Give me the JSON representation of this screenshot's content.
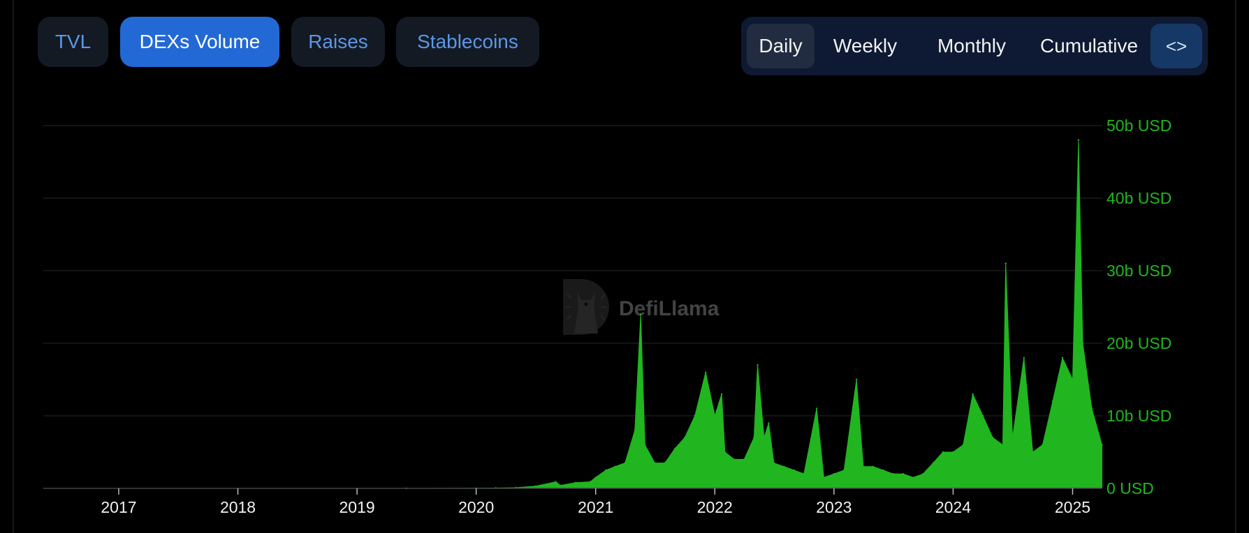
{
  "tabs": [
    {
      "label": "TVL"
    },
    {
      "label": "DEXs Volume"
    },
    {
      "label": "Raises"
    },
    {
      "label": "Stablecoins"
    }
  ],
  "active_tab": "DEXs Volume",
  "periods": [
    {
      "label": "Daily"
    },
    {
      "label": "Weekly"
    },
    {
      "label": "Monthly"
    },
    {
      "label": "Cumulative"
    }
  ],
  "active_period": "Daily",
  "embed_icon": "code-icon",
  "embed_label": "<>",
  "watermark": {
    "text": "DefiLlama",
    "icon": "llama-logo"
  },
  "colors": {
    "series": "#21b520",
    "axis_text": "#21b520",
    "accent": "#2269d6"
  },
  "chart_data": {
    "type": "area",
    "title": "",
    "xlabel": "",
    "ylabel": "",
    "x_range": [
      "2016-05-15",
      "2025-04-02"
    ],
    "x_ticks": [
      "2017",
      "2018",
      "2019",
      "2020",
      "2021",
      "2022",
      "2023",
      "2024",
      "2025"
    ],
    "y_ticks": [
      "0 USD",
      "10b USD",
      "20b USD",
      "30b USD",
      "40b USD",
      "50b USD"
    ],
    "ylim": [
      0,
      50
    ],
    "y_unit": "b USD",
    "grid": true,
    "y_axis_position": "right",
    "series": [
      {
        "points": [
          [
            "2019-06-01",
            0.0
          ],
          [
            "2020-01-01",
            0.02
          ],
          [
            "2020-03-01",
            0.05
          ],
          [
            "2020-05-01",
            0.1
          ],
          [
            "2020-07-01",
            0.3
          ],
          [
            "2020-09-01",
            0.9
          ],
          [
            "2020-09-15",
            0.4
          ],
          [
            "2020-11-01",
            0.8
          ],
          [
            "2020-12-15",
            0.9
          ],
          [
            "2021-01-01",
            1.5
          ],
          [
            "2021-02-01",
            2.5
          ],
          [
            "2021-03-01",
            3.0
          ],
          [
            "2021-04-01",
            3.5
          ],
          [
            "2021-05-01",
            8.0
          ],
          [
            "2021-05-19",
            24.0
          ],
          [
            "2021-06-01",
            6.0
          ],
          [
            "2021-07-01",
            3.5
          ],
          [
            "2021-08-01",
            3.5
          ],
          [
            "2021-09-01",
            5.5
          ],
          [
            "2021-10-01",
            7.0
          ],
          [
            "2021-11-01",
            10.0
          ],
          [
            "2021-12-04",
            16.0
          ],
          [
            "2022-01-01",
            10.0
          ],
          [
            "2022-01-22",
            13.0
          ],
          [
            "2022-02-01",
            5.0
          ],
          [
            "2022-03-01",
            4.0
          ],
          [
            "2022-04-01",
            4.0
          ],
          [
            "2022-05-01",
            7.0
          ],
          [
            "2022-05-12",
            17.0
          ],
          [
            "2022-06-01",
            7.0
          ],
          [
            "2022-06-15",
            9.0
          ],
          [
            "2022-07-01",
            3.5
          ],
          [
            "2022-08-01",
            3.0
          ],
          [
            "2022-09-01",
            2.5
          ],
          [
            "2022-10-01",
            2.0
          ],
          [
            "2022-11-09",
            11.0
          ],
          [
            "2022-12-01",
            1.5
          ],
          [
            "2023-01-01",
            2.0
          ],
          [
            "2023-02-01",
            2.5
          ],
          [
            "2023-03-11",
            15.0
          ],
          [
            "2023-04-01",
            3.0
          ],
          [
            "2023-05-01",
            3.0
          ],
          [
            "2023-06-01",
            2.5
          ],
          [
            "2023-07-01",
            2.0
          ],
          [
            "2023-08-01",
            2.0
          ],
          [
            "2023-09-01",
            1.5
          ],
          [
            "2023-10-01",
            2.0
          ],
          [
            "2023-11-01",
            3.5
          ],
          [
            "2023-12-01",
            5.0
          ],
          [
            "2024-01-01",
            5.0
          ],
          [
            "2024-02-01",
            6.0
          ],
          [
            "2024-03-01",
            13.0
          ],
          [
            "2024-04-01",
            10.0
          ],
          [
            "2024-05-01",
            7.0
          ],
          [
            "2024-06-01",
            6.0
          ],
          [
            "2024-06-10",
            31.0
          ],
          [
            "2024-07-01",
            7.0
          ],
          [
            "2024-08-05",
            18.0
          ],
          [
            "2024-09-01",
            5.0
          ],
          [
            "2024-10-01",
            6.0
          ],
          [
            "2024-11-01",
            12.0
          ],
          [
            "2024-12-01",
            18.0
          ],
          [
            "2025-01-01",
            15.0
          ],
          [
            "2025-01-19",
            48.0
          ],
          [
            "2025-02-01",
            20.0
          ],
          [
            "2025-03-01",
            11.0
          ],
          [
            "2025-04-01",
            6.0
          ]
        ]
      }
    ]
  }
}
